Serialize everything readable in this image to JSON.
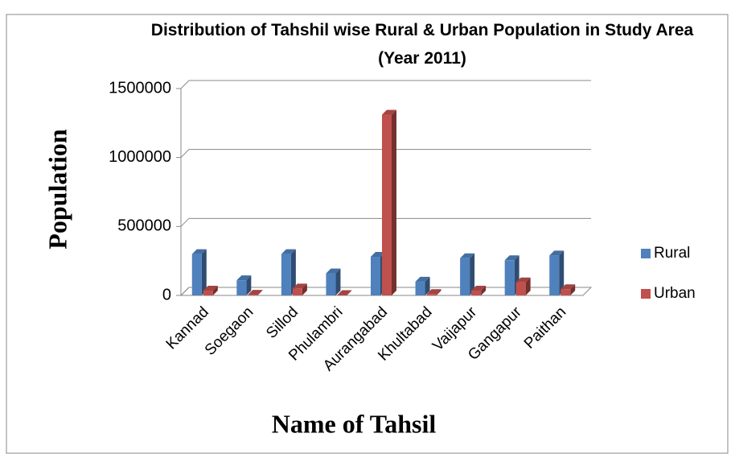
{
  "chart_data": {
    "type": "bar3d",
    "title": "Distribution of Tahshil wise Rural & Urban Population  in Study Area (Year 2011)",
    "x_label": "Name of Tahsil",
    "y_label": "Population",
    "categories": [
      "Kannad",
      "Soegaon",
      "Sillod",
      "Phulambri",
      "Aurangabad",
      "Khultabad",
      "Vaijapur",
      "Gangapur",
      "Paithan"
    ],
    "series": [
      {
        "name": "Rural",
        "color": "#4f81bd",
        "values": [
          300000,
          110000,
          300000,
          160000,
          280000,
          100000,
          270000,
          255000,
          290000
        ]
      },
      {
        "name": "Urban",
        "color": "#c0504d",
        "values": [
          35000,
          5000,
          50000,
          3000,
          1310000,
          10000,
          35000,
          95000,
          45000
        ]
      }
    ],
    "ylim": [
      0,
      1500000
    ],
    "yticks": [
      0,
      500000,
      1000000,
      1500000
    ],
    "grid": true,
    "legend": "right"
  }
}
